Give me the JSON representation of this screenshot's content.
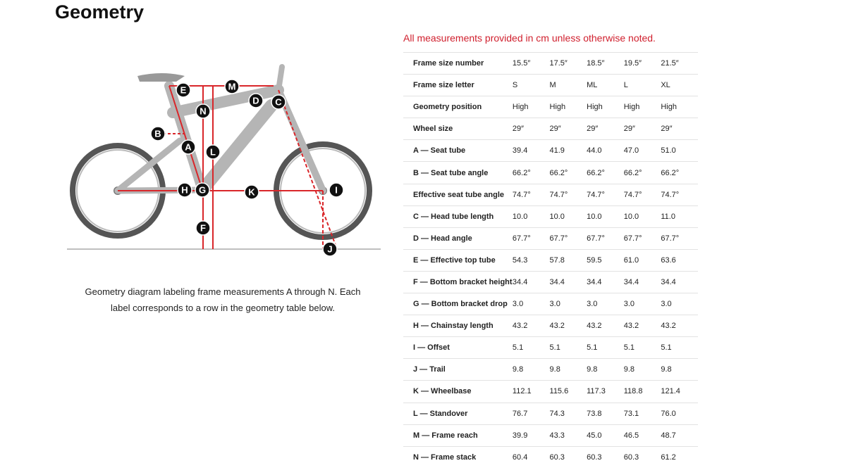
{
  "header": {
    "title": "Geometry"
  },
  "note": "All measurements provided in cm unless otherwise noted.",
  "diagram": {
    "labels": [
      "E",
      "M",
      "D",
      "C",
      "N",
      "B",
      "A",
      "L",
      "H",
      "G",
      "K",
      "I",
      "F",
      "J"
    ],
    "caption": "Geometry diagram labeling frame measurements A through N. Each label corresponds to a row in the geometry table below."
  },
  "table": {
    "rows": [
      [
        "Frame size number",
        "15.5″",
        "17.5″",
        "18.5″",
        "19.5″",
        "21.5″"
      ],
      [
        "Frame size letter",
        "S",
        "M",
        "ML",
        "L",
        "XL"
      ],
      [
        "Geometry position",
        "High",
        "High",
        "High",
        "High",
        "High"
      ],
      [
        "Wheel size",
        "29″",
        "29″",
        "29″",
        "29″",
        "29″"
      ],
      [
        "A — Seat tube",
        "39.4",
        "41.9",
        "44.0",
        "47.0",
        "51.0"
      ],
      [
        "B — Seat tube angle",
        "66.2°",
        "66.2°",
        "66.2°",
        "66.2°",
        "66.2°"
      ],
      [
        "Effective seat tube angle",
        "74.7°",
        "74.7°",
        "74.7°",
        "74.7°",
        "74.7°"
      ],
      [
        "C — Head tube length",
        "10.0",
        "10.0",
        "10.0",
        "10.0",
        "11.0"
      ],
      [
        "D — Head angle",
        "67.7°",
        "67.7°",
        "67.7°",
        "67.7°",
        "67.7°"
      ],
      [
        "E — Effective top tube",
        "54.3",
        "57.8",
        "59.5",
        "61.0",
        "63.6"
      ],
      [
        "F — Bottom bracket height",
        "34.4",
        "34.4",
        "34.4",
        "34.4",
        "34.4"
      ],
      [
        "G — Bottom bracket drop",
        "3.0",
        "3.0",
        "3.0",
        "3.0",
        "3.0"
      ],
      [
        "H — Chainstay length",
        "43.2",
        "43.2",
        "43.2",
        "43.2",
        "43.2"
      ],
      [
        "I — Offset",
        "5.1",
        "5.1",
        "5.1",
        "5.1",
        "5.1"
      ],
      [
        "J — Trail",
        "9.8",
        "9.8",
        "9.8",
        "9.8",
        "9.8"
      ],
      [
        "K — Wheelbase",
        "112.1",
        "115.6",
        "117.3",
        "118.8",
        "121.4"
      ],
      [
        "L — Standover",
        "76.7",
        "74.3",
        "73.8",
        "73.1",
        "76.0"
      ],
      [
        "M — Frame reach",
        "39.9",
        "43.3",
        "45.0",
        "46.5",
        "48.7"
      ],
      [
        "N — Frame stack",
        "60.4",
        "60.3",
        "60.3",
        "60.3",
        "61.2"
      ]
    ]
  }
}
